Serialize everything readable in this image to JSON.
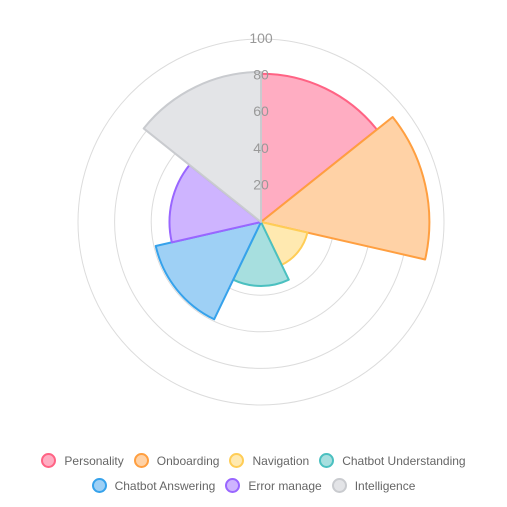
{
  "chart_data": {
    "type": "polarArea",
    "title": "",
    "categories": [
      "Personality",
      "Onboarding",
      "Navigation",
      "Chatbot Understanding",
      "Chatbot Answering",
      "Error manage",
      "Intelligence"
    ],
    "values": [
      81,
      92,
      26,
      35,
      59,
      50,
      82
    ],
    "rlim": [
      0,
      100
    ],
    "ticks": [
      "20",
      "40",
      "60",
      "80",
      "100"
    ],
    "grid": true,
    "legend_position": "bottom",
    "colors": {
      "fill": [
        "#ffadc2",
        "#ffd2a6",
        "#ffe9b0",
        "#a7dfdf",
        "#9ed0f5",
        "#ceb4ff",
        "#e3e4e7"
      ],
      "stroke": [
        "#ff6384",
        "#ff9f40",
        "#ffcd56",
        "#4bc0c0",
        "#36a2eb",
        "#9966ff",
        "#c9cbcf"
      ]
    }
  }
}
